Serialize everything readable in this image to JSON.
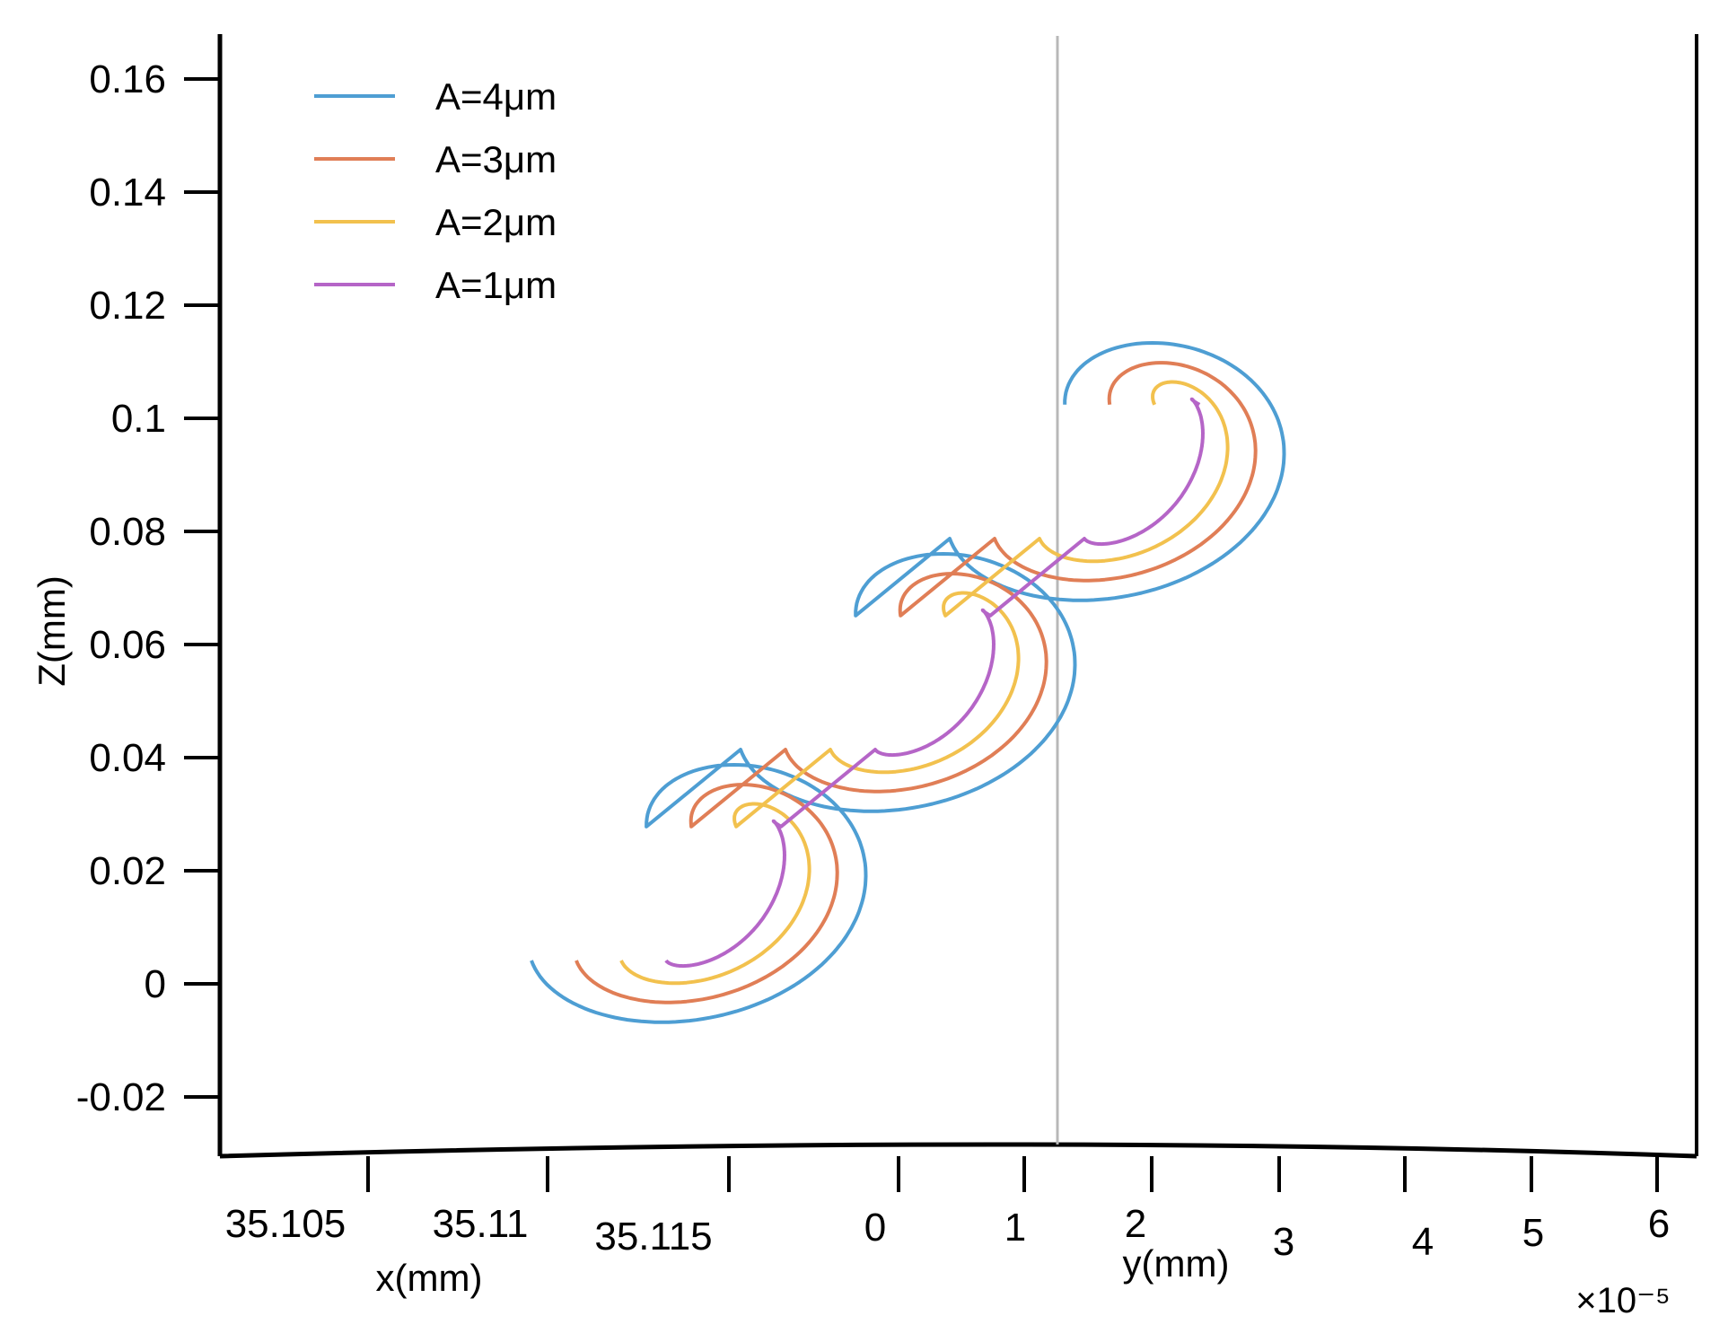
{
  "chart_data": {
    "type": "line",
    "title": "",
    "zlabel": "Z(mm)",
    "xlabel": "x(mm)",
    "ylabel": "y(mm)",
    "y_exponent": "×10⁻⁵",
    "zlim": [
      -0.03,
      0.17
    ],
    "z_ticks": [
      "0.16",
      "0.14",
      "0.12",
      "0.1",
      "0.08",
      "0.06",
      "0.04",
      "0.02",
      "0",
      "-0.02"
    ],
    "x_ticks": [
      "35.105",
      "35.11",
      "35.115"
    ],
    "y_ticks": [
      "0",
      "1",
      "2",
      "3",
      "4",
      "5",
      "6"
    ],
    "grid": false,
    "legend_position": "top-left",
    "series": [
      {
        "name": "A=4μm",
        "color": "#4e9ed3",
        "amplitude_um": 4,
        "start": [
          0.0,
          0.03
        ],
        "turns": 3,
        "turn_advance": [
          0.0,
          0.038
        ]
      },
      {
        "name": "A=3μm",
        "color": "#e07e56",
        "amplitude_um": 3,
        "start": [
          0.0,
          0.023
        ],
        "turns": 3,
        "turn_advance": [
          0.0,
          0.038
        ]
      },
      {
        "name": "A=2μm",
        "color": "#f2c14e",
        "amplitude_um": 2,
        "start": [
          0.0,
          0.015
        ],
        "turns": 3,
        "turn_advance": [
          0.0,
          0.038
        ]
      },
      {
        "name": "A=1μm",
        "color": "#b565c7",
        "amplitude_um": 1,
        "start": [
          0.0,
          0.008
        ],
        "turns": 3,
        "turn_advance": [
          0.0,
          0.038
        ]
      }
    ]
  }
}
